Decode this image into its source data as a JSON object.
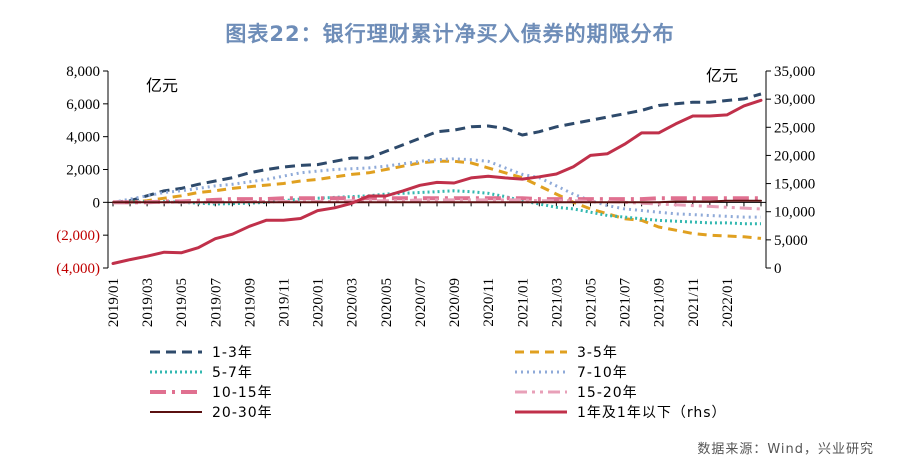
{
  "title": "图表22：银行理财累计净买入债券的期限分布",
  "left_unit": "亿元",
  "right_unit": "亿元",
  "source": "数据来源：Wind，兴业研究",
  "chart_data": {
    "type": "line",
    "title": "图表22：银行理财累计净买入债券的期限分布",
    "x": [
      "2019/01",
      "2019/02",
      "2019/03",
      "2019/04",
      "2019/05",
      "2019/06",
      "2019/07",
      "2019/08",
      "2019/09",
      "2019/10",
      "2019/11",
      "2019/12",
      "2020/01",
      "2020/02",
      "2020/03",
      "2020/04",
      "2020/05",
      "2020/06",
      "2020/07",
      "2020/08",
      "2020/09",
      "2020/10",
      "2020/11",
      "2020/12",
      "2021/01",
      "2021/02",
      "2021/03",
      "2021/04",
      "2021/05",
      "2021/06",
      "2021/07",
      "2021/08",
      "2021/09",
      "2021/10",
      "2021/11",
      "2021/12",
      "2022/01",
      "2022/02",
      "2022/03"
    ],
    "x_tick_labels": [
      "2019/01",
      "2019/03",
      "2019/05",
      "2019/07",
      "2019/09",
      "2019/11",
      "2020/01",
      "2020/03",
      "2020/05",
      "2020/07",
      "2020/09",
      "2020/11",
      "2021/01",
      "2021/03",
      "2021/05",
      "2021/07",
      "2021/09",
      "2021/11",
      "2022/01"
    ],
    "y_left": {
      "ylim": [
        -4000,
        8000
      ],
      "tick_labels": [
        "8,000",
        "6,000",
        "4,000",
        "2,000",
        "0",
        "(2,000)",
        "(4,000)"
      ],
      "tick_values": [
        8000,
        6000,
        4000,
        2000,
        0,
        -2000,
        -4000
      ]
    },
    "y_right": {
      "ylim": [
        0,
        35000
      ],
      "tick_labels": [
        "35,000",
        "30,000",
        "25,000",
        "20,000",
        "15,000",
        "10,000",
        "5,000",
        "0"
      ],
      "tick_values": [
        35000,
        30000,
        25000,
        20000,
        15000,
        10000,
        5000,
        0
      ]
    },
    "legend_placement": "bottom",
    "series": [
      {
        "name": "1-3年",
        "axis": "left",
        "color": "#2e4a6b",
        "dash": "10,6",
        "width": 3,
        "values": [
          0,
          100,
          400,
          700,
          850,
          1100,
          1300,
          1500,
          1800,
          2000,
          2150,
          2250,
          2300,
          2500,
          2700,
          2700,
          3100,
          3500,
          3900,
          4300,
          4400,
          4600,
          4650,
          4500,
          4100,
          4300,
          4600,
          4800,
          5000,
          5200,
          5400,
          5600,
          5900,
          6000,
          6100,
          6100,
          6200,
          6300,
          6600
        ]
      },
      {
        "name": "3-5年",
        "axis": "left",
        "color": "#e0a020",
        "dash": "9,6",
        "width": 3,
        "values": [
          0,
          0,
          100,
          250,
          400,
          600,
          700,
          850,
          950,
          1050,
          1150,
          1300,
          1400,
          1550,
          1700,
          1800,
          2000,
          2200,
          2400,
          2500,
          2500,
          2400,
          2100,
          1800,
          1500,
          1000,
          500,
          0,
          -400,
          -700,
          -1000,
          -1100,
          -1500,
          -1700,
          -1900,
          -2000,
          -2050,
          -2100,
          -2200
        ]
      },
      {
        "name": "5-7年",
        "axis": "left",
        "color": "#33b8b0",
        "dash": "2,3",
        "width": 3,
        "values": [
          0,
          0,
          50,
          50,
          0,
          -50,
          -100,
          -80,
          -50,
          0,
          100,
          200,
          250,
          300,
          350,
          400,
          500,
          550,
          600,
          650,
          700,
          650,
          550,
          350,
          100,
          -100,
          -300,
          -400,
          -600,
          -800,
          -900,
          -1000,
          -1100,
          -1150,
          -1200,
          -1250,
          -1250,
          -1300,
          -1300
        ]
      },
      {
        "name": "7-10年",
        "axis": "left",
        "color": "#8faad8",
        "dash": "2,4",
        "width": 3,
        "values": [
          0,
          200,
          400,
          600,
          700,
          850,
          1000,
          1100,
          1250,
          1400,
          1600,
          1800,
          1900,
          2000,
          2050,
          2100,
          2200,
          2350,
          2500,
          2600,
          2650,
          2600,
          2500,
          2100,
          1700,
          1500,
          1000,
          500,
          100,
          -200,
          -400,
          -500,
          -600,
          -700,
          -750,
          -800,
          -850,
          -900,
          -900
        ]
      },
      {
        "name": "10-15年",
        "axis": "left",
        "color": "#e07090",
        "dash": "16,6,3,6",
        "width": 4,
        "values": [
          0,
          0,
          0,
          50,
          50,
          100,
          150,
          200,
          200,
          200,
          250,
          250,
          250,
          250,
          250,
          250,
          250,
          250,
          250,
          250,
          250,
          250,
          250,
          250,
          250,
          200,
          200,
          200,
          200,
          200,
          200,
          200,
          250,
          250,
          250,
          250,
          250,
          250,
          250
        ]
      },
      {
        "name": "15-20年",
        "axis": "left",
        "color": "#e8a0b8",
        "dash": "12,5,3,5,3,5",
        "width": 3,
        "values": [
          0,
          0,
          0,
          0,
          0,
          0,
          0,
          50,
          50,
          50,
          50,
          50,
          50,
          50,
          100,
          100,
          100,
          100,
          150,
          150,
          150,
          150,
          150,
          150,
          150,
          100,
          100,
          100,
          50,
          50,
          0,
          -50,
          -100,
          -150,
          -200,
          -250,
          -300,
          -350,
          -400
        ]
      },
      {
        "name": "20-30年",
        "axis": "left",
        "color": "#5a1010",
        "dash": "",
        "width": 2,
        "values": [
          0,
          0,
          0,
          0,
          0,
          0,
          0,
          0,
          0,
          0,
          0,
          0,
          0,
          0,
          0,
          0,
          0,
          0,
          0,
          0,
          0,
          0,
          0,
          0,
          0,
          0,
          0,
          0,
          0,
          0,
          0,
          0,
          0,
          50,
          50,
          50,
          100,
          100,
          100
        ]
      },
      {
        "name": "1年及1年以下（rhs）",
        "axis": "right",
        "color": "#c0304a",
        "dash": "",
        "width": 3,
        "values": [
          800,
          1500,
          2100,
          2800,
          2700,
          3600,
          5200,
          6000,
          7400,
          8500,
          8500,
          8800,
          10200,
          10700,
          11500,
          12800,
          12800,
          13700,
          14700,
          15200,
          15100,
          16000,
          16300,
          16000,
          15800,
          16200,
          16700,
          18000,
          20000,
          20300,
          22000,
          24000,
          24000,
          25600,
          27000,
          27000,
          27200,
          28800,
          29800
        ]
      }
    ],
    "legend_labels": [
      "1-3年",
      "3-5年",
      "5-7年",
      "7-10年",
      "10-15年",
      "15-20年",
      "20-30年",
      "1年及1年以下（rhs）"
    ]
  }
}
